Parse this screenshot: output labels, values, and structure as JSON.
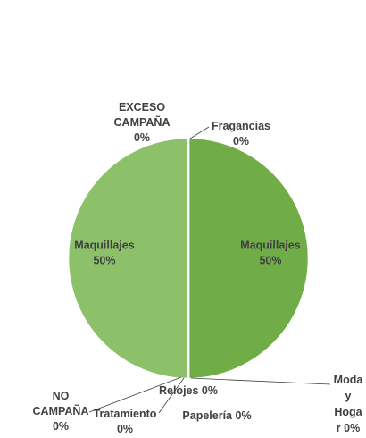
{
  "chart_data": {
    "type": "pie",
    "title": "",
    "colors": [
      "#70AD47",
      "#8CC169"
    ],
    "slices": [
      {
        "name": "Maquillajes",
        "value": 50,
        "label_lines": [
          "Maquillajes",
          "50%"
        ]
      },
      {
        "name": "Maquillajes",
        "value": 50,
        "label_lines": [
          "Maquillajes",
          "50%"
        ]
      },
      {
        "name": "NO CAMPAÑA",
        "value": 0,
        "label_lines": [
          "NO",
          "CAMPAÑA",
          "0%"
        ]
      },
      {
        "name": "Tratamiento",
        "value": 0,
        "label_lines": [
          "Tratamiento",
          "0%"
        ]
      },
      {
        "name": "Relojes",
        "value": 0,
        "label_lines": [
          "Relojes 0%"
        ]
      },
      {
        "name": "Papelería",
        "value": 0,
        "label_lines": [
          "Papelería 0%"
        ]
      },
      {
        "name": "Moda y Hogar",
        "value": 0,
        "label_lines": [
          "Moda",
          "y",
          "Hoga",
          "r 0%"
        ]
      },
      {
        "name": "EXCESO CAMPAÑA",
        "value": 0,
        "label_lines": [
          "EXCESO",
          "CAMPAÑA",
          "0%"
        ]
      },
      {
        "name": "Fragancias",
        "value": 0,
        "label_lines": [
          "Fragancias",
          "0%"
        ]
      }
    ]
  }
}
